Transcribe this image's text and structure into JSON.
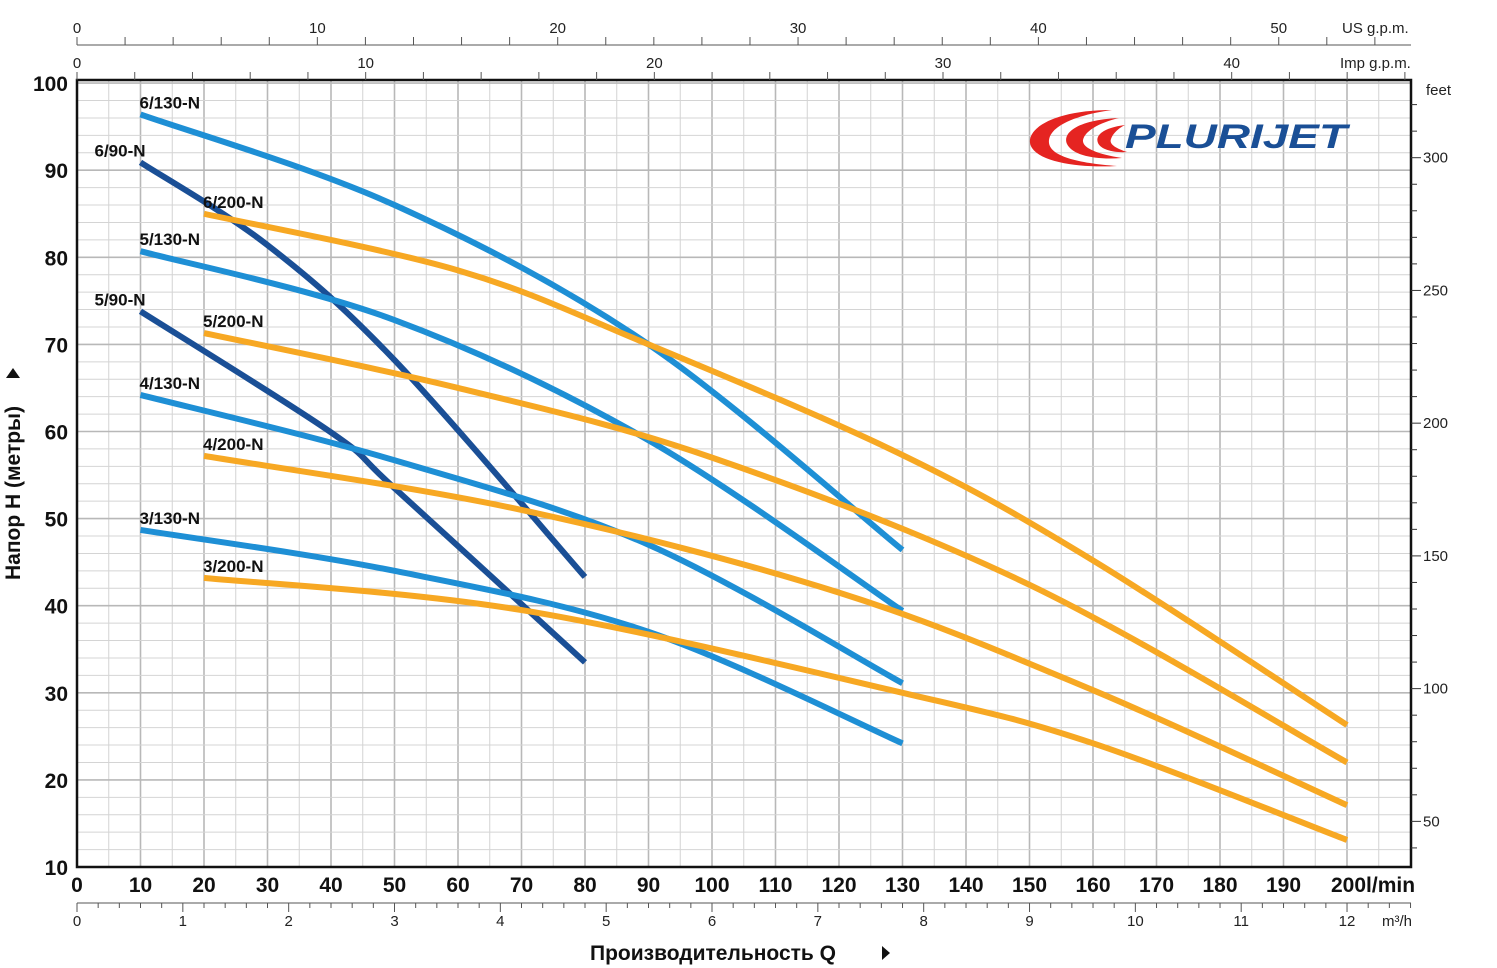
{
  "chart_data": {
    "type": "line",
    "title": "",
    "xlabel": "Производительность Q",
    "ylabel": "Напор H (метры)",
    "x_unit": "l/min",
    "xlim": [
      0,
      210
    ],
    "ylim": [
      10,
      100
    ],
    "x_ticks": [
      0,
      10,
      20,
      30,
      40,
      50,
      60,
      70,
      80,
      90,
      100,
      110,
      120,
      130,
      140,
      150,
      160,
      170,
      180,
      190,
      200
    ],
    "x_last_tick_label": "200l/min",
    "y_ticks": [
      10,
      20,
      30,
      40,
      50,
      60,
      70,
      80,
      90,
      100
    ],
    "grid": true,
    "secondary_axes": {
      "us_gpm": {
        "label": "US g.p.m.",
        "ticks": [
          0,
          10,
          20,
          30,
          40,
          50
        ]
      },
      "imp_gpm": {
        "label": "Imp g.p.m.",
        "ticks": [
          0,
          10,
          20,
          30,
          40
        ]
      },
      "m3h": {
        "label": "m³/h",
        "ticks": [
          0,
          1,
          2,
          3,
          4,
          5,
          6,
          7,
          8,
          9,
          10,
          11,
          12
        ]
      },
      "feet": {
        "label": "feet",
        "ticks": [
          50,
          100,
          150,
          200,
          250,
          300
        ]
      }
    },
    "series": [
      {
        "name": "6/130-N",
        "color": "#1e8fd5",
        "points": [
          [
            10,
            96.4
          ],
          [
            50,
            86
          ],
          [
            90,
            70
          ],
          [
            130,
            46.4
          ]
        ]
      },
      {
        "name": "6/90-N",
        "color": "#1a4f96",
        "points": [
          [
            10,
            90.9
          ],
          [
            30,
            81.4
          ],
          [
            50,
            68.2
          ],
          [
            80,
            43.3
          ]
        ]
      },
      {
        "name": "6/200-N",
        "color": "#f7a823",
        "points": [
          [
            20,
            85
          ],
          [
            60,
            78.5
          ],
          [
            90,
            70
          ],
          [
            130,
            57.3
          ],
          [
            160,
            45.2
          ],
          [
            200,
            26.3
          ]
        ]
      },
      {
        "name": "5/130-N",
        "color": "#1e8fd5",
        "points": [
          [
            10,
            80.7
          ],
          [
            50,
            72.8
          ],
          [
            90,
            59
          ],
          [
            130,
            39.4
          ]
        ]
      },
      {
        "name": "5/90-N",
        "color": "#1a4f96",
        "points": [
          [
            10,
            73.8
          ],
          [
            40,
            59.9
          ],
          [
            50,
            53.5
          ],
          [
            80,
            33.5
          ]
        ]
      },
      {
        "name": "5/200-N",
        "color": "#f7a823",
        "points": [
          [
            20,
            71.3
          ],
          [
            60,
            65
          ],
          [
            100,
            57
          ],
          [
            150,
            42.4
          ],
          [
            200,
            22
          ]
        ]
      },
      {
        "name": "4/130-N",
        "color": "#1e8fd5",
        "points": [
          [
            10,
            64.2
          ],
          [
            50,
            56.7
          ],
          [
            90,
            47
          ],
          [
            130,
            31.1
          ]
        ]
      },
      {
        "name": "4/200-N",
        "color": "#f7a823",
        "points": [
          [
            20,
            57.2
          ],
          [
            70,
            51
          ],
          [
            120,
            41.5
          ],
          [
            160,
            30.3
          ],
          [
            200,
            17.1
          ]
        ]
      },
      {
        "name": "3/130-N",
        "color": "#1e8fd5",
        "points": [
          [
            10,
            48.7
          ],
          [
            50,
            44
          ],
          [
            90,
            37
          ],
          [
            130,
            24.2
          ]
        ]
      },
      {
        "name": "3/200-N",
        "color": "#f7a823",
        "points": [
          [
            20,
            43.2
          ],
          [
            70,
            39.5
          ],
          [
            130,
            30
          ],
          [
            160,
            24.2
          ],
          [
            200,
            13.1
          ]
        ]
      }
    ]
  },
  "logo": {
    "text": "PLURIJET"
  }
}
